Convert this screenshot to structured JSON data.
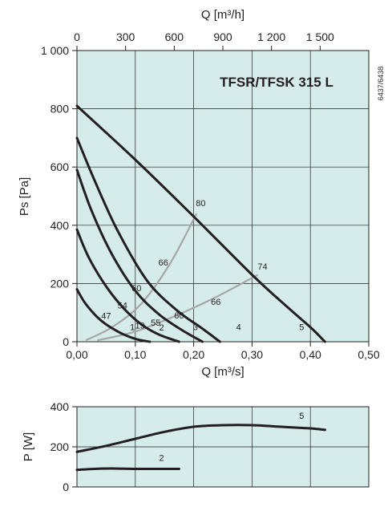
{
  "chart_data": [
    {
      "type": "line",
      "title": "TFSR/TFSK 315 L",
      "code": "6437/6438",
      "xlabel": "Q [m³/s]",
      "ylabel": "Ps [Pa]",
      "top_xlabel": "Q [m³/h]",
      "xlim": [
        0,
        0.5
      ],
      "ylim": [
        0,
        1000
      ],
      "x_ticks": [
        0,
        0.1,
        0.2,
        0.3,
        0.4,
        0.5
      ],
      "x_tick_labels": [
        "0,00",
        "0,10",
        "0,20",
        "0,30",
        "0,40",
        "0,50"
      ],
      "y_ticks": [
        0,
        200,
        400,
        600,
        800,
        1000
      ],
      "y_tick_labels": [
        "0",
        "200",
        "400",
        "600",
        "800",
        "1 000"
      ],
      "top_ticks": [
        0,
        300,
        600,
        900,
        1200,
        1500
      ],
      "top_tick_labels": [
        "0",
        "300",
        "600",
        "900",
        "1 200",
        "1 500"
      ],
      "top_factor": 3600,
      "background": "#d6ecea",
      "curve_color": "#231f20",
      "efficiency_color": "#a6a6a6",
      "series": [
        {
          "name": "1",
          "x": [
            0,
            0.015,
            0.04,
            0.07,
            0.1,
            0.125
          ],
          "y": [
            180,
            130,
            75,
            35,
            10,
            0
          ]
        },
        {
          "name": "2",
          "x": [
            0,
            0.02,
            0.05,
            0.08,
            0.11,
            0.14,
            0.175
          ],
          "y": [
            385,
            290,
            190,
            115,
            60,
            25,
            0
          ]
        },
        {
          "name": "3",
          "x": [
            0,
            0.025,
            0.06,
            0.1,
            0.14,
            0.18,
            0.215
          ],
          "y": [
            590,
            450,
            300,
            175,
            95,
            40,
            0
          ]
        },
        {
          "name": "4",
          "x": [
            0,
            0.03,
            0.07,
            0.12,
            0.17,
            0.215,
            0.245
          ],
          "y": [
            700,
            555,
            380,
            210,
            110,
            45,
            0
          ]
        },
        {
          "name": "5",
          "x": [
            0,
            0.1,
            0.2,
            0.3,
            0.36,
            0.4,
            0.425
          ],
          "y": [
            810,
            625,
            430,
            230,
            120,
            50,
            0
          ]
        }
      ],
      "efficiency_lines": [
        {
          "x": [
            0.015,
            0.06,
            0.11,
            0.16,
            0.205
          ],
          "y": [
            5,
            50,
            130,
            270,
            440
          ]
        },
        {
          "x": [
            0.035,
            0.1,
            0.17,
            0.24,
            0.31
          ],
          "y": [
            5,
            35,
            90,
            155,
            230
          ]
        }
      ],
      "annotations": [
        {
          "text": "80",
          "x": 0.212,
          "y": 465
        },
        {
          "text": "74",
          "x": 0.318,
          "y": 248
        },
        {
          "text": "66",
          "x": 0.148,
          "y": 262
        },
        {
          "text": "66",
          "x": 0.238,
          "y": 127
        },
        {
          "text": "60",
          "x": 0.102,
          "y": 173
        },
        {
          "text": "60",
          "x": 0.175,
          "y": 80
        },
        {
          "text": "54",
          "x": 0.078,
          "y": 115
        },
        {
          "text": "55",
          "x": 0.135,
          "y": 55
        },
        {
          "text": "47",
          "x": 0.05,
          "y": 78
        },
        {
          "text": "1",
          "x": 0.095,
          "y": 40
        },
        {
          "text": "2",
          "x": 0.145,
          "y": 38
        },
        {
          "text": "3",
          "x": 0.203,
          "y": 40
        },
        {
          "text": "4",
          "x": 0.277,
          "y": 40
        },
        {
          "text": "5",
          "x": 0.385,
          "y": 40
        },
        {
          "text": "19",
          "x": 0.108,
          "y": 45
        }
      ]
    },
    {
      "type": "line",
      "ylabel": "P [W]",
      "xlim": [
        0,
        0.5
      ],
      "ylim": [
        0,
        400
      ],
      "y_ticks": [
        0,
        200,
        400
      ],
      "y_tick_labels": [
        "0",
        "200",
        "400"
      ],
      "background": "#d6ecea",
      "curve_color": "#231f20",
      "series": [
        {
          "name": "5",
          "x": [
            0,
            0.05,
            0.1,
            0.15,
            0.2,
            0.25,
            0.3,
            0.35,
            0.4,
            0.425
          ],
          "y": [
            175,
            205,
            240,
            275,
            300,
            308,
            308,
            300,
            292,
            285
          ]
        },
        {
          "name": "2",
          "x": [
            0,
            0.03,
            0.06,
            0.1,
            0.14,
            0.175
          ],
          "y": [
            85,
            90,
            92,
            90,
            90,
            90
          ]
        }
      ],
      "annotations": [
        {
          "text": "5",
          "x": 0.385,
          "y": 340
        },
        {
          "text": "2",
          "x": 0.145,
          "y": 130
        }
      ]
    }
  ]
}
